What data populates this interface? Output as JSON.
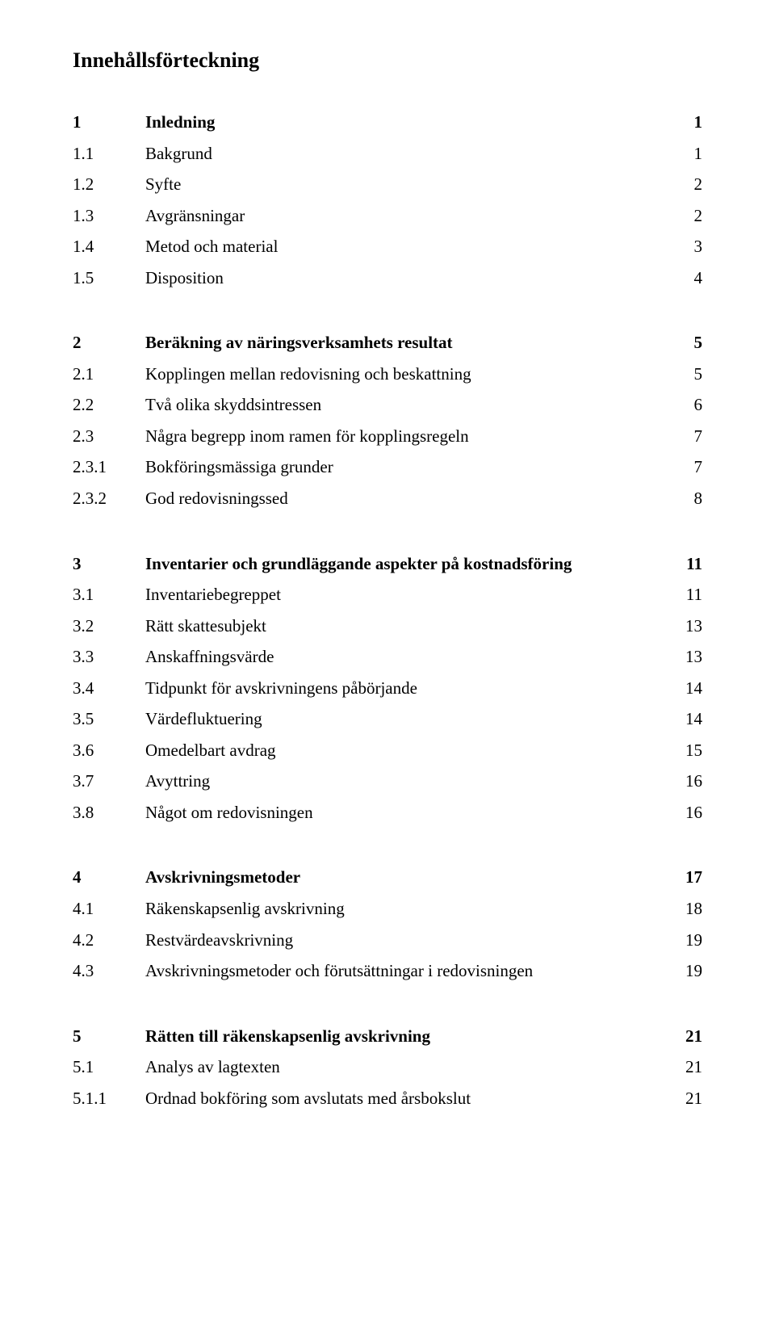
{
  "heading": "Innehållsförteckning",
  "entries": [
    {
      "num": "1",
      "title": "Inledning",
      "page": "1",
      "bold": true
    },
    {
      "num": "1.1",
      "title": "Bakgrund",
      "page": "1",
      "bold": false
    },
    {
      "num": "1.2",
      "title": "Syfte",
      "page": "2",
      "bold": false
    },
    {
      "num": "1.3",
      "title": "Avgränsningar",
      "page": "2",
      "bold": false
    },
    {
      "num": "1.4",
      "title": "Metod och material",
      "page": "3",
      "bold": false
    },
    {
      "num": "1.5",
      "title": "Disposition",
      "page": "4",
      "bold": false
    },
    {
      "gap": true
    },
    {
      "num": "2",
      "title": "Beräkning av näringsverksamhets resultat",
      "page": "5",
      "bold": true
    },
    {
      "num": "2.1",
      "title": "Kopplingen mellan redovisning och beskattning",
      "page": "5",
      "bold": false
    },
    {
      "num": "2.2",
      "title": "Två olika skyddsintressen",
      "page": "6",
      "bold": false
    },
    {
      "num": "2.3",
      "title": "Några begrepp inom ramen för kopplingsregeln",
      "page": "7",
      "bold": false
    },
    {
      "num": "2.3.1",
      "title": "Bokföringsmässiga grunder",
      "page": "7",
      "bold": false
    },
    {
      "num": "2.3.2",
      "title": "God redovisningssed",
      "page": "8",
      "bold": false
    },
    {
      "gap": true
    },
    {
      "num": "3",
      "title": "Inventarier och grundläggande aspekter på kostnadsföring",
      "page": "11",
      "bold": true
    },
    {
      "num": "3.1",
      "title": "Inventariebegreppet",
      "page": "11",
      "bold": false
    },
    {
      "num": "3.2",
      "title": "Rätt skattesubjekt",
      "page": "13",
      "bold": false
    },
    {
      "num": "3.3",
      "title": "Anskaffningsvärde",
      "page": "13",
      "bold": false
    },
    {
      "num": "3.4",
      "title": "Tidpunkt för avskrivningens påbörjande",
      "page": "14",
      "bold": false
    },
    {
      "num": "3.5",
      "title": "Värdefluktuering",
      "page": "14",
      "bold": false
    },
    {
      "num": "3.6",
      "title": "Omedelbart avdrag",
      "page": "15",
      "bold": false
    },
    {
      "num": "3.7",
      "title": "Avyttring",
      "page": "16",
      "bold": false
    },
    {
      "num": "3.8",
      "title": "Något om redovisningen",
      "page": "16",
      "bold": false
    },
    {
      "gap": true
    },
    {
      "num": "4",
      "title": "Avskrivningsmetoder",
      "page": "17",
      "bold": true
    },
    {
      "num": "4.1",
      "title": "Räkenskapsenlig avskrivning",
      "page": "18",
      "bold": false
    },
    {
      "num": "4.2",
      "title": "Restvärdeavskrivning",
      "page": "19",
      "bold": false
    },
    {
      "num": "4.3",
      "title": "Avskrivningsmetoder och förutsättningar i redovisningen",
      "page": "19",
      "bold": false
    },
    {
      "gap": true
    },
    {
      "num": "5",
      "title": "Rätten till räkenskapsenlig avskrivning",
      "page": "21",
      "bold": true
    },
    {
      "num": "5.1",
      "title": "Analys av lagtexten",
      "page": "21",
      "bold": false
    },
    {
      "num": "5.1.1",
      "title": "Ordnad bokföring som avslutats med årsbokslut",
      "page": "21",
      "bold": false
    }
  ]
}
